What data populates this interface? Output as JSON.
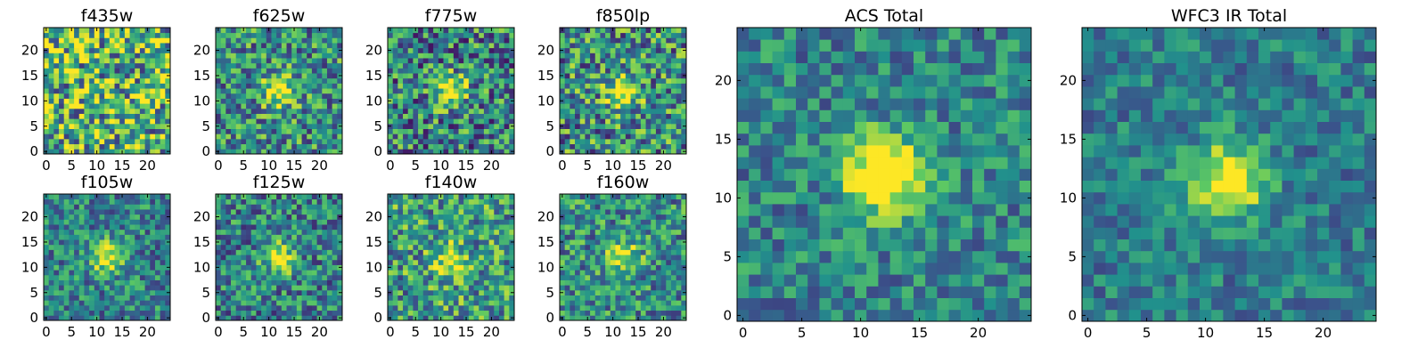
{
  "figure": {
    "colormap": "viridis",
    "colormap_stops": [
      "#440154",
      "#3b528b",
      "#21918c",
      "#5ec962",
      "#fde725"
    ]
  },
  "chart_data": [
    {
      "type": "heatmap",
      "title": "f435w",
      "grid_size": 25,
      "source_center": null,
      "signal": 0.0,
      "noise": 0.6,
      "base": 0.65,
      "seed": 11,
      "xticks": [
        0,
        5,
        10,
        15,
        20
      ],
      "yticks": [
        0,
        5,
        10,
        15,
        20
      ],
      "xlim": [
        0,
        25
      ],
      "ylim": [
        0,
        25
      ]
    },
    {
      "type": "heatmap",
      "title": "f625w",
      "grid_size": 25,
      "source_center": [
        12.5,
        12.5
      ],
      "signal": 0.55,
      "noise": 0.45,
      "base": 0.5,
      "seed": 23,
      "xticks": [
        0,
        5,
        10,
        15,
        20
      ],
      "yticks": [
        0,
        5,
        10,
        15,
        20
      ],
      "xlim": [
        0,
        25
      ],
      "ylim": [
        0,
        25
      ]
    },
    {
      "type": "heatmap",
      "title": "f775w",
      "grid_size": 25,
      "source_center": [
        12.5,
        12.5
      ],
      "signal": 0.6,
      "noise": 0.5,
      "base": 0.45,
      "seed": 37,
      "xticks": [
        0,
        5,
        10,
        15,
        20
      ],
      "yticks": [
        0,
        5,
        10,
        15,
        20
      ],
      "xlim": [
        0,
        25
      ],
      "ylim": [
        0,
        25
      ]
    },
    {
      "type": "heatmap",
      "title": "f850lp",
      "grid_size": 25,
      "source_center": [
        12.5,
        12.5
      ],
      "signal": 0.55,
      "noise": 0.5,
      "base": 0.5,
      "seed": 41,
      "xticks": [
        0,
        5,
        10,
        15,
        20
      ],
      "yticks": [
        0,
        5,
        10,
        15,
        20
      ],
      "xlim": [
        0,
        25
      ],
      "ylim": [
        0,
        25
      ]
    },
    {
      "type": "heatmap",
      "title": "f105w",
      "grid_size": 25,
      "source_center": [
        12.5,
        12.5
      ],
      "signal": 0.55,
      "noise": 0.35,
      "base": 0.45,
      "seed": 53,
      "xticks": [
        0,
        5,
        10,
        15,
        20
      ],
      "yticks": [
        0,
        5,
        10,
        15,
        20
      ],
      "xlim": [
        0,
        25
      ],
      "ylim": [
        0,
        25
      ]
    },
    {
      "type": "heatmap",
      "title": "f125w",
      "grid_size": 25,
      "source_center": [
        12.5,
        12.5
      ],
      "signal": 0.55,
      "noise": 0.4,
      "base": 0.45,
      "seed": 67,
      "xticks": [
        0,
        5,
        10,
        15,
        20
      ],
      "yticks": [
        0,
        5,
        10,
        15,
        20
      ],
      "xlim": [
        0,
        25
      ],
      "ylim": [
        0,
        25
      ]
    },
    {
      "type": "heatmap",
      "title": "f140w",
      "grid_size": 25,
      "source_center": [
        12.5,
        11.5
      ],
      "signal": 0.45,
      "noise": 0.45,
      "base": 0.55,
      "seed": 79,
      "xticks": [
        0,
        5,
        10,
        15,
        20
      ],
      "yticks": [
        0,
        5,
        10,
        15,
        20
      ],
      "xlim": [
        0,
        25
      ],
      "ylim": [
        0,
        25
      ]
    },
    {
      "type": "heatmap",
      "title": "f160w",
      "grid_size": 25,
      "source_center": [
        12.5,
        12.5
      ],
      "signal": 0.5,
      "noise": 0.4,
      "base": 0.5,
      "seed": 83,
      "xticks": [
        0,
        5,
        10,
        15,
        20
      ],
      "yticks": [
        0,
        5,
        10,
        15,
        20
      ],
      "xlim": [
        0,
        25
      ],
      "ylim": [
        0,
        25
      ]
    },
    {
      "type": "heatmap",
      "title": "ACS Total",
      "grid_size": 25,
      "source_center": [
        12.5,
        12.5
      ],
      "signal": 0.9,
      "noise": 0.3,
      "base": 0.45,
      "seed": 97,
      "xticks": [
        0,
        5,
        10,
        15,
        20
      ],
      "yticks": [
        0,
        5,
        10,
        15,
        20
      ],
      "xlim": [
        0,
        25
      ],
      "ylim": [
        0,
        25
      ]
    },
    {
      "type": "heatmap",
      "title": "WFC3 IR Total",
      "grid_size": 25,
      "source_center": [
        12.5,
        12.0
      ],
      "signal": 0.7,
      "noise": 0.25,
      "base": 0.42,
      "seed": 101,
      "xticks": [
        0,
        5,
        10,
        15,
        20
      ],
      "yticks": [
        0,
        5,
        10,
        15,
        20
      ],
      "xlim": [
        0,
        25
      ],
      "ylim": [
        0,
        25
      ]
    }
  ]
}
